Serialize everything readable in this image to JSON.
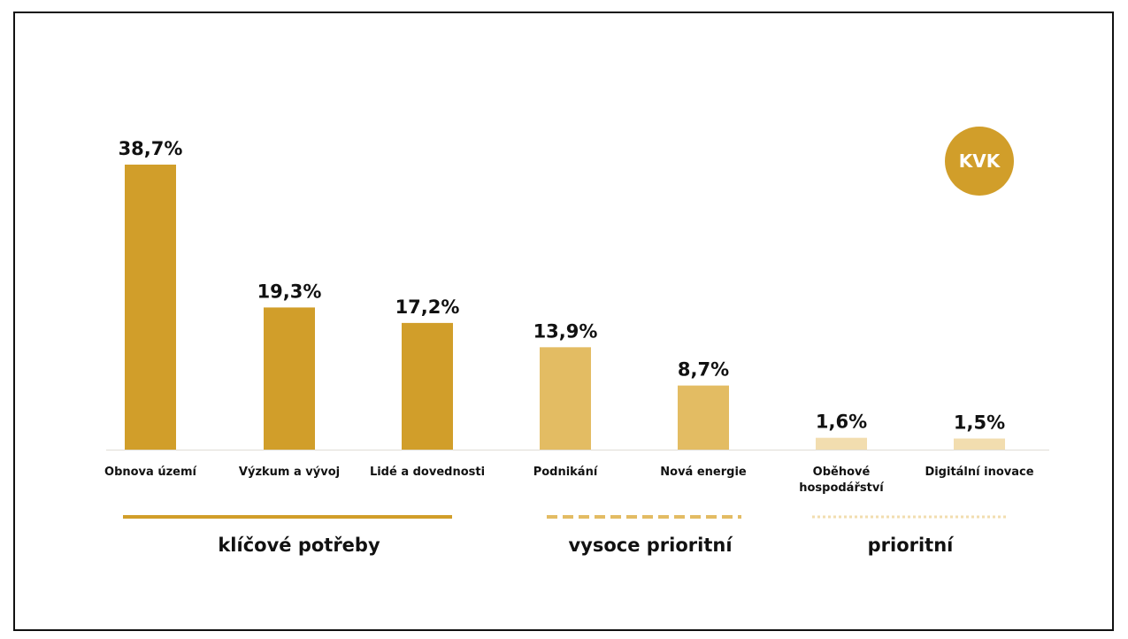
{
  "badge": {
    "label": "KVK",
    "color": "#D19E2A"
  },
  "colors": {
    "key": "#D19E2A",
    "high": "#E3BC63",
    "prior": "#F2DDAF",
    "baseline": "#E0DDD6"
  },
  "chart_data": {
    "type": "bar",
    "categories": [
      "Obnova území",
      "Výzkum a vývoj",
      "Lidé a dovednosti",
      "Podnikání",
      "Nová energie",
      "Oběhové hospodářství",
      "Digitální inovace"
    ],
    "category_lines": [
      [
        "Obnova území"
      ],
      [
        "Výzkum a vývoj"
      ],
      [
        "Lidé a dovednosti"
      ],
      [
        "Podnikání"
      ],
      [
        "Nová energie"
      ],
      [
        "Oběhové",
        "hospodářství"
      ],
      [
        "Digitální inovace"
      ]
    ],
    "values": [
      38.7,
      19.3,
      17.2,
      13.9,
      8.7,
      1.6,
      1.5
    ],
    "value_labels": [
      "38,7%",
      "19,3%",
      "17,2%",
      "13,9%",
      "8,7%",
      "1,6%",
      "1,5%"
    ],
    "bar_group": [
      "key",
      "key",
      "key",
      "high",
      "high",
      "prior",
      "prior"
    ],
    "ylim": [
      0,
      40
    ],
    "groups": [
      {
        "key": "key",
        "label": "klíčové potřeby",
        "line_style": "solid"
      },
      {
        "key": "high",
        "label": "vysoce prioritní",
        "line_style": "dashed"
      },
      {
        "key": "prior",
        "label": "prioritní",
        "line_style": "dotted"
      }
    ]
  }
}
